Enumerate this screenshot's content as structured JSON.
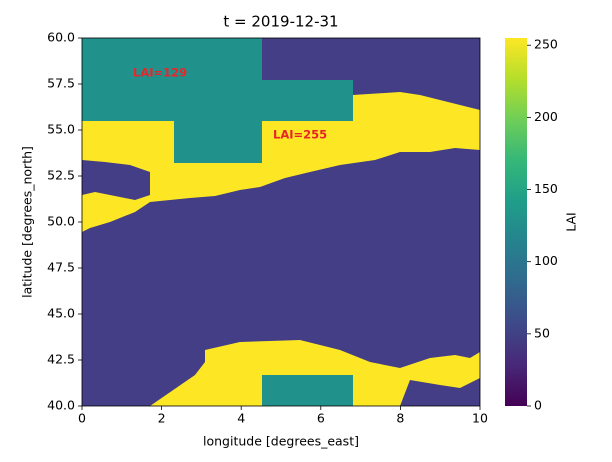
{
  "chart_data": {
    "type": "heatmap",
    "title": "t = 2019-12-31",
    "xlabel": "longitude [degrees_east]",
    "ylabel": "latitude [degrees_north]",
    "xlim": [
      0,
      10
    ],
    "xticks": [
      0,
      2,
      4,
      6,
      8,
      10
    ],
    "ylim": [
      40,
      60
    ],
    "yticks": [
      {
        "value": 40,
        "label": "40.0"
      },
      42.5,
      {
        "value": 45,
        "label": "45.0"
      },
      47.5,
      {
        "value": 50,
        "label": "50.0"
      },
      52.5,
      {
        "value": 55,
        "label": "55.0"
      },
      57.5,
      {
        "value": 60,
        "label": "60.0"
      }
    ],
    "colorbar_label": "LAI",
    "clim": [
      0,
      255
    ],
    "cticks": [
      0,
      50,
      100,
      150,
      200,
      250
    ],
    "colormap": [
      "#440154",
      "#482878",
      "#3e4989",
      "#31688e",
      "#26828e",
      "#1f9e89",
      "#35b779",
      "#6ece58",
      "#b5de2b",
      "#fde725"
    ],
    "annotations": [
      "LAI=129",
      "LAI=255"
    ]
  }
}
